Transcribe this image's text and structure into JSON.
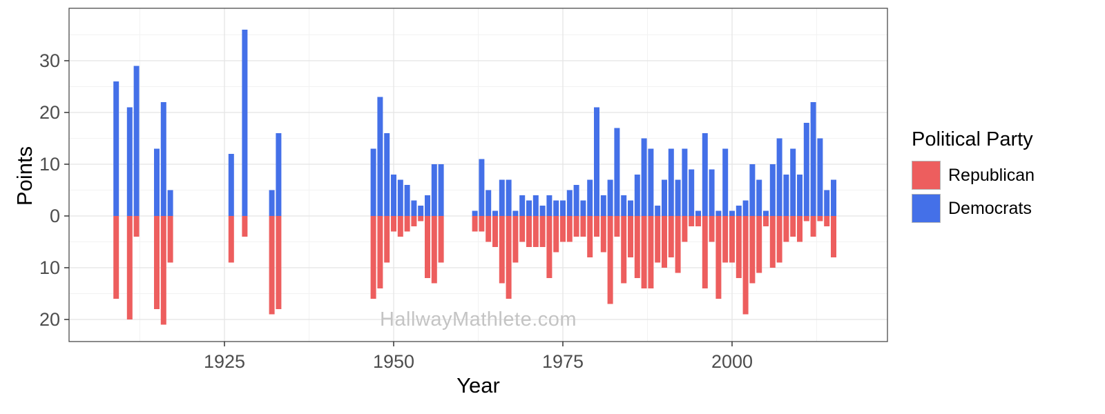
{
  "watermark": "HallwayMathlete.com",
  "axes": {
    "x_label": "Year",
    "y_label": "Points"
  },
  "legend": {
    "title": "Political Party",
    "items": [
      {
        "label": "Republican",
        "color": "#ED5E5E"
      },
      {
        "label": "Democrats",
        "color": "#4470E8"
      }
    ]
  },
  "chart_data": {
    "type": "bar",
    "subtype": "diverging-mirrored",
    "title": "",
    "xlabel": "Year",
    "ylabel": "Points",
    "xlim": [
      1902,
      2023
    ],
    "ylim": [
      -24,
      40
    ],
    "x_ticks": [
      1925,
      1950,
      1975,
      2000
    ],
    "y_ticks": [
      {
        "value": 30,
        "label": "30"
      },
      {
        "value": 20,
        "label": "20"
      },
      {
        "value": 10,
        "label": "10"
      },
      {
        "value": 0,
        "label": "0"
      },
      {
        "value": -10,
        "label": "10"
      },
      {
        "value": -20,
        "label": "20"
      }
    ],
    "grid": {
      "y_major": [
        -20,
        -10,
        0,
        10,
        20,
        30
      ],
      "y_minor": [
        -15,
        -5,
        5,
        15,
        25,
        35
      ],
      "x_major": [
        1925,
        1950,
        1975,
        2000
      ],
      "x_minor": [
        1912.5,
        1937.5,
        1962.5,
        1987.5,
        2012.5
      ],
      "major_color": "#e4e4e4",
      "minor_color": "#f2f2f2"
    },
    "series": [
      {
        "name": "Republican",
        "color": "#ED5E5E",
        "direction": "down"
      },
      {
        "name": "Democrats",
        "color": "#4470E8",
        "direction": "up"
      }
    ],
    "points_columns": [
      "year",
      "democrats",
      "republican"
    ],
    "points": [
      [
        1909,
        26,
        16
      ],
      [
        1911,
        21,
        20
      ],
      [
        1912,
        29,
        4
      ],
      [
        1915,
        13,
        18
      ],
      [
        1916,
        22,
        21
      ],
      [
        1917,
        5,
        9
      ],
      [
        1926,
        12,
        9
      ],
      [
        1928,
        36,
        4
      ],
      [
        1932,
        5,
        19
      ],
      [
        1933,
        16,
        18
      ],
      [
        1947,
        13,
        16
      ],
      [
        1948,
        23,
        14
      ],
      [
        1949,
        16,
        9
      ],
      [
        1950,
        8,
        3
      ],
      [
        1951,
        7,
        4
      ],
      [
        1952,
        6,
        3
      ],
      [
        1953,
        3,
        2
      ],
      [
        1954,
        2,
        1
      ],
      [
        1955,
        4,
        12
      ],
      [
        1956,
        10,
        13
      ],
      [
        1957,
        10,
        9
      ],
      [
        1962,
        1,
        3
      ],
      [
        1963,
        11,
        3
      ],
      [
        1964,
        5,
        5
      ],
      [
        1965,
        1,
        6
      ],
      [
        1966,
        7,
        13
      ],
      [
        1967,
        7,
        16
      ],
      [
        1968,
        1,
        9
      ],
      [
        1969,
        4,
        5
      ],
      [
        1970,
        3,
        6
      ],
      [
        1971,
        4,
        6
      ],
      [
        1972,
        2,
        6
      ],
      [
        1973,
        4,
        12
      ],
      [
        1974,
        3,
        7
      ],
      [
        1975,
        3,
        5
      ],
      [
        1976,
        5,
        5
      ],
      [
        1977,
        6,
        4
      ],
      [
        1978,
        3,
        4
      ],
      [
        1979,
        7,
        8
      ],
      [
        1980,
        21,
        4
      ],
      [
        1981,
        4,
        7
      ],
      [
        1982,
        7,
        17
      ],
      [
        1983,
        17,
        4
      ],
      [
        1984,
        4,
        13
      ],
      [
        1985,
        3,
        8
      ],
      [
        1986,
        8,
        12
      ],
      [
        1987,
        15,
        14
      ],
      [
        1988,
        13,
        14
      ],
      [
        1989,
        2,
        9
      ],
      [
        1990,
        7,
        10
      ],
      [
        1991,
        13,
        8
      ],
      [
        1992,
        7,
        11
      ],
      [
        1993,
        13,
        5
      ],
      [
        1994,
        9,
        2
      ],
      [
        1995,
        1,
        2
      ],
      [
        1996,
        16,
        14
      ],
      [
        1997,
        9,
        5
      ],
      [
        1998,
        1,
        16
      ],
      [
        1999,
        13,
        9
      ],
      [
        2000,
        1,
        9
      ],
      [
        2001,
        2,
        12
      ],
      [
        2002,
        3,
        19
      ],
      [
        2003,
        10,
        13
      ],
      [
        2004,
        7,
        11
      ],
      [
        2005,
        1,
        2
      ],
      [
        2006,
        10,
        10
      ],
      [
        2007,
        15,
        9
      ],
      [
        2008,
        8,
        5
      ],
      [
        2009,
        13,
        4
      ],
      [
        2010,
        8,
        5
      ],
      [
        2011,
        18,
        1
      ],
      [
        2012,
        22,
        4
      ],
      [
        2013,
        15,
        1
      ],
      [
        2014,
        5,
        2
      ],
      [
        2015,
        7,
        8
      ]
    ]
  }
}
